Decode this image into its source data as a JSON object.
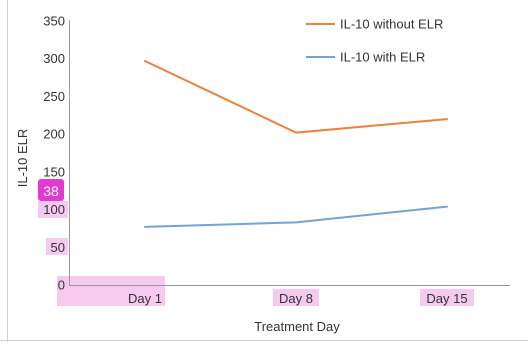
{
  "chart_data": {
    "type": "line",
    "title": "",
    "xlabel": "Treatment Day",
    "ylabel": "IL-10 ELR",
    "categories": [
      "Day 1",
      "Day 8",
      "Day 15"
    ],
    "ylim": [
      0,
      350
    ],
    "yticks": [
      "0",
      "50",
      "100",
      "150",
      "200",
      "250",
      "300",
      "350"
    ],
    "grid": false,
    "legend_position": "top-right",
    "series": [
      {
        "name": "IL-10 without ELR",
        "color": "#f07f3a",
        "values": [
          297,
          202,
          220
        ]
      },
      {
        "name": "IL-10 with ELR",
        "color": "#6fa3dc",
        "values": [
          77,
          83,
          104
        ]
      }
    ],
    "annotation": {
      "label": "38",
      "color": "#e23ad3",
      "highlight_color": "#f6c9f0"
    }
  }
}
